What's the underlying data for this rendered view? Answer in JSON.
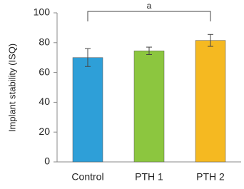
{
  "chart_data": {
    "type": "bar",
    "y_label": "Implant stability (ISQ)",
    "categories": [
      "Control",
      "PTH 1",
      "PTH 2"
    ],
    "values": [
      70,
      74.5,
      81.5
    ],
    "errors": [
      6,
      2.5,
      4
    ],
    "colors": [
      "#2e9fd8",
      "#8cc63f",
      "#f5b921"
    ],
    "ylim": [
      0,
      100
    ],
    "yticks": [
      0,
      20,
      40,
      60,
      80,
      100
    ],
    "annotation": "a"
  }
}
